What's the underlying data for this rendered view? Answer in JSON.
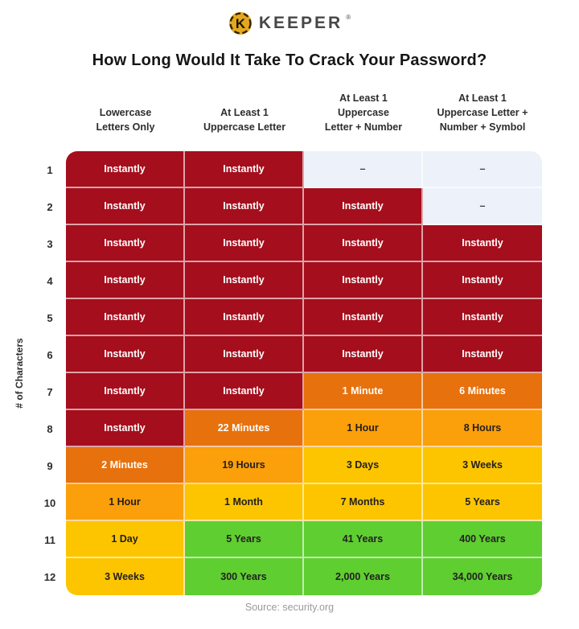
{
  "brand": {
    "name": "KEEPER",
    "registered": "®"
  },
  "title": "How Long Would It Take To Crack Your Password?",
  "y_axis_label": "# of Characters",
  "source": "Source: security.org",
  "colors": {
    "red": "#A50E1C",
    "dorange": "#E7710D",
    "lorange": "#FB9F0A",
    "yellow": "#FDC500",
    "green": "#5FCE30",
    "empty": "#EDF2FA",
    "text_light": "#FFFFFF",
    "text_dark": "#231F20",
    "brand_gold": "#E3A81E"
  },
  "light_text_levels": [
    "red",
    "dorange"
  ],
  "chart_data": {
    "type": "table",
    "title": "How Long Would It Take To Crack Your Password?",
    "row_axis_label": "# of Characters",
    "columns": [
      {
        "lines": [
          "Lowercase",
          "Letters Only"
        ]
      },
      {
        "lines": [
          "At Least 1",
          "Uppercase Letter"
        ]
      },
      {
        "lines": [
          "At Least 1",
          "Uppercase",
          "Letter + Number"
        ]
      },
      {
        "lines": [
          "At Least 1",
          "Uppercase Letter +",
          "Number + Symbol"
        ]
      }
    ],
    "rows": [
      {
        "num": "1",
        "cells": [
          {
            "text": "Instantly",
            "level": "red"
          },
          {
            "text": "Instantly",
            "level": "red"
          },
          {
            "text": "–",
            "level": "empty"
          },
          {
            "text": "–",
            "level": "empty"
          }
        ]
      },
      {
        "num": "2",
        "cells": [
          {
            "text": "Instantly",
            "level": "red"
          },
          {
            "text": "Instantly",
            "level": "red"
          },
          {
            "text": "Instantly",
            "level": "red"
          },
          {
            "text": "–",
            "level": "empty"
          }
        ]
      },
      {
        "num": "3",
        "cells": [
          {
            "text": "Instantly",
            "level": "red"
          },
          {
            "text": "Instantly",
            "level": "red"
          },
          {
            "text": "Instantly",
            "level": "red"
          },
          {
            "text": "Instantly",
            "level": "red"
          }
        ]
      },
      {
        "num": "4",
        "cells": [
          {
            "text": "Instantly",
            "level": "red"
          },
          {
            "text": "Instantly",
            "level": "red"
          },
          {
            "text": "Instantly",
            "level": "red"
          },
          {
            "text": "Instantly",
            "level": "red"
          }
        ]
      },
      {
        "num": "5",
        "cells": [
          {
            "text": "Instantly",
            "level": "red"
          },
          {
            "text": "Instantly",
            "level": "red"
          },
          {
            "text": "Instantly",
            "level": "red"
          },
          {
            "text": "Instantly",
            "level": "red"
          }
        ]
      },
      {
        "num": "6",
        "cells": [
          {
            "text": "Instantly",
            "level": "red"
          },
          {
            "text": "Instantly",
            "level": "red"
          },
          {
            "text": "Instantly",
            "level": "red"
          },
          {
            "text": "Instantly",
            "level": "red"
          }
        ]
      },
      {
        "num": "7",
        "cells": [
          {
            "text": "Instantly",
            "level": "red"
          },
          {
            "text": "Instantly",
            "level": "red"
          },
          {
            "text": "1 Minute",
            "level": "dorange"
          },
          {
            "text": "6 Minutes",
            "level": "dorange"
          }
        ]
      },
      {
        "num": "8",
        "cells": [
          {
            "text": "Instantly",
            "level": "red"
          },
          {
            "text": "22 Minutes",
            "level": "dorange"
          },
          {
            "text": "1 Hour",
            "level": "lorange"
          },
          {
            "text": "8 Hours",
            "level": "lorange"
          }
        ]
      },
      {
        "num": "9",
        "cells": [
          {
            "text": "2 Minutes",
            "level": "dorange"
          },
          {
            "text": "19 Hours",
            "level": "lorange"
          },
          {
            "text": "3 Days",
            "level": "yellow"
          },
          {
            "text": "3 Weeks",
            "level": "yellow"
          }
        ]
      },
      {
        "num": "10",
        "cells": [
          {
            "text": "1 Hour",
            "level": "lorange"
          },
          {
            "text": "1 Month",
            "level": "yellow"
          },
          {
            "text": "7 Months",
            "level": "yellow"
          },
          {
            "text": "5 Years",
            "level": "yellow"
          }
        ]
      },
      {
        "num": "11",
        "cells": [
          {
            "text": "1 Day",
            "level": "yellow"
          },
          {
            "text": "5 Years",
            "level": "green"
          },
          {
            "text": "41 Years",
            "level": "green"
          },
          {
            "text": "400 Years",
            "level": "green"
          }
        ]
      },
      {
        "num": "12",
        "cells": [
          {
            "text": "3 Weeks",
            "level": "yellow"
          },
          {
            "text": "300 Years",
            "level": "green"
          },
          {
            "text": "2,000 Years",
            "level": "green"
          },
          {
            "text": "34,000 Years",
            "level": "green"
          }
        ]
      }
    ]
  }
}
